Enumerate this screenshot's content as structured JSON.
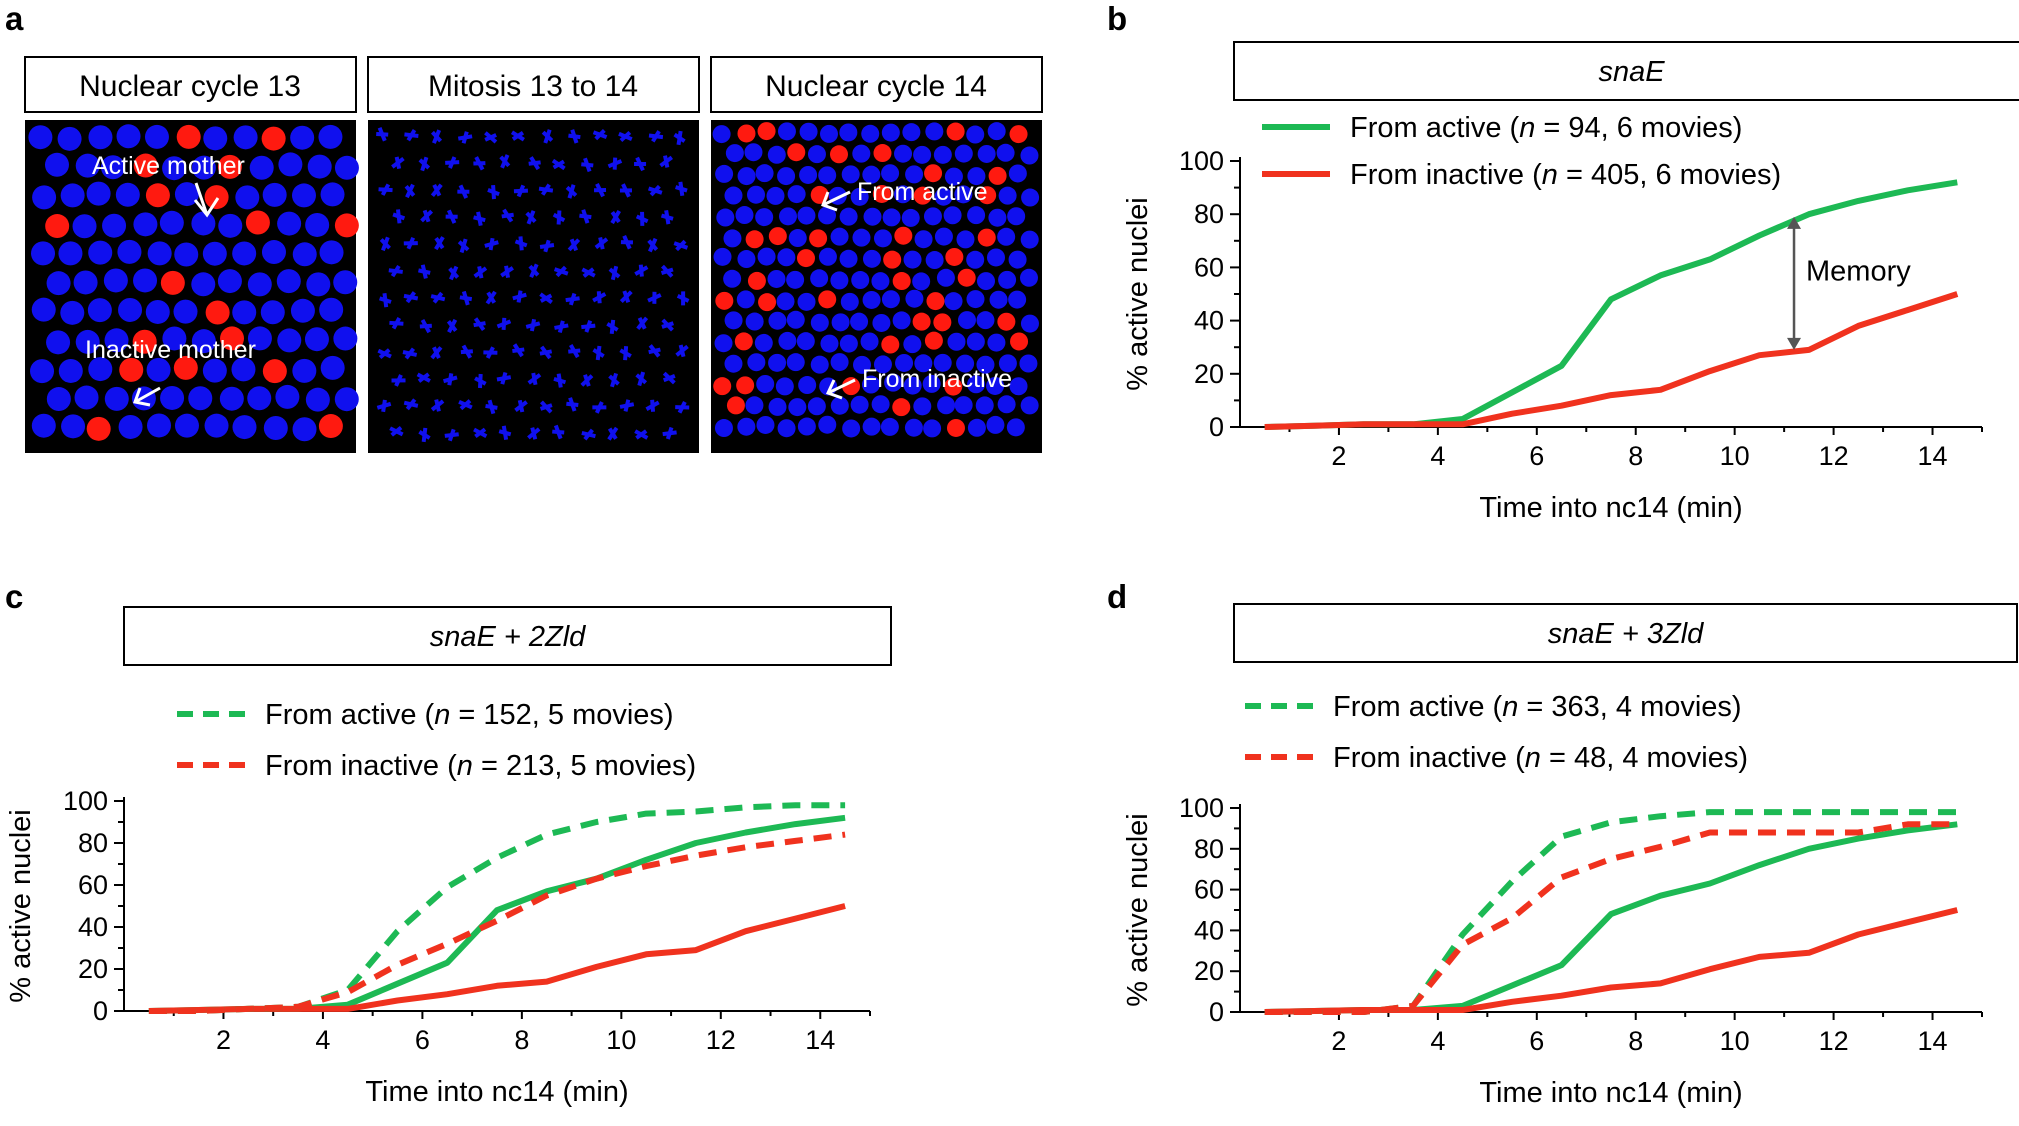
{
  "panel_letters": {
    "a": "a",
    "b": "b",
    "c": "c",
    "d": "d"
  },
  "panel_a": {
    "headers": [
      "Nuclear cycle 13",
      "Mitosis 13 to 14",
      "Nuclear cycle 14"
    ],
    "labels": {
      "active_mother": "Active mother",
      "inactive_mother": "Inactive mother",
      "from_active": "From active",
      "from_inactive": "From inactive"
    },
    "colors": {
      "background": "#000000",
      "nucleus": "#1010ee",
      "active": "#ff1a10",
      "arrow": "#ffffff"
    }
  },
  "colors": {
    "green": "#1db954",
    "red": "#f0321e",
    "memory_arrow": "#555555",
    "frame": "#000000"
  },
  "chart_data": [
    {
      "panel": "b",
      "type": "line",
      "title": "snaE",
      "xlabel": "Time into nc14 (min)",
      "ylabel": "% active nuclei",
      "xlim": [
        0,
        15
      ],
      "ylim": [
        0,
        100
      ],
      "xticks": [
        2,
        4,
        6,
        8,
        10,
        12,
        14
      ],
      "yticks": [
        0,
        20,
        40,
        60,
        80,
        100
      ],
      "x": [
        0.5,
        1.5,
        2.5,
        3.5,
        4.5,
        5.5,
        6.5,
        7.5,
        8.5,
        9.5,
        10.5,
        11.5,
        12.5,
        13.5,
        14.5
      ],
      "series": [
        {
          "name": "From active",
          "label": "From active",
          "n": "94",
          "rest": ", 6 movies)",
          "color": "green",
          "dashed": false,
          "values": [
            0,
            0.5,
            1,
            1,
            3,
            13,
            23,
            48,
            57,
            63,
            72,
            80,
            85,
            89,
            92
          ]
        },
        {
          "name": "From inactive",
          "label": "From inactive",
          "n": "405",
          "rest": ", 6 movies)",
          "color": "red",
          "dashed": false,
          "values": [
            0,
            0.5,
            1,
            1,
            1,
            5,
            8,
            12,
            14,
            21,
            27,
            29,
            38,
            44,
            50
          ]
        }
      ],
      "annotation": {
        "text": "Memory",
        "x": 11.2,
        "y_top": 79,
        "y_bottom": 29
      }
    },
    {
      "panel": "c",
      "type": "line",
      "title": "snaE + 2Zld",
      "xlabel": "Time into nc14 (min)",
      "ylabel": "% active nuclei",
      "xlim": [
        0,
        15
      ],
      "ylim": [
        0,
        100
      ],
      "xticks": [
        2,
        4,
        6,
        8,
        10,
        12,
        14
      ],
      "yticks": [
        0,
        20,
        40,
        60,
        80,
        100
      ],
      "x": [
        0.5,
        1.5,
        2.5,
        3.5,
        4.5,
        5.5,
        6.5,
        7.5,
        8.5,
        9.5,
        10.5,
        11.5,
        12.5,
        13.5,
        14.5
      ],
      "series": [
        {
          "name": "From active",
          "label": "From active",
          "n": "152",
          "rest": ", 5 movies)",
          "color": "green",
          "dashed": true,
          "values": [
            0,
            0,
            1,
            2,
            10,
            38,
            59,
            73,
            84,
            90,
            94,
            95,
            97,
            98,
            98
          ]
        },
        {
          "name": "From inactive",
          "label": "From inactive",
          "n": "213",
          "rest": ", 5 movies)",
          "color": "red",
          "dashed": true,
          "values": [
            0,
            0,
            1,
            2,
            9,
            22,
            32,
            43,
            55,
            63,
            69,
            74,
            78,
            81,
            84
          ]
        },
        {
          "name": "snaE from active",
          "color": "green",
          "dashed": false,
          "legend": false,
          "values": [
            0,
            0.5,
            1,
            1,
            3,
            13,
            23,
            48,
            57,
            63,
            72,
            80,
            85,
            89,
            92
          ]
        },
        {
          "name": "snaE from inactive",
          "color": "red",
          "dashed": false,
          "legend": false,
          "values": [
            0,
            0.5,
            1,
            1,
            1,
            5,
            8,
            12,
            14,
            21,
            27,
            29,
            38,
            44,
            50
          ]
        }
      ]
    },
    {
      "panel": "d",
      "type": "line",
      "title": "snaE + 3Zld",
      "xlabel": "Time into nc14 (min)",
      "ylabel": "% active nuclei",
      "xlim": [
        0,
        15
      ],
      "ylim": [
        0,
        100
      ],
      "xticks": [
        2,
        4,
        6,
        8,
        10,
        12,
        14
      ],
      "yticks": [
        0,
        20,
        40,
        60,
        80,
        100
      ],
      "x": [
        0.5,
        1.5,
        2.5,
        3.5,
        4.5,
        5.5,
        6.5,
        7.5,
        8.5,
        9.5,
        10.5,
        11.5,
        12.5,
        13.5,
        14.5
      ],
      "series": [
        {
          "name": "From active",
          "label": "From active",
          "n": "363",
          "rest": ", 4 movies)",
          "color": "green",
          "dashed": true,
          "values": [
            0,
            0,
            0,
            3,
            38,
            64,
            86,
            93,
            96,
            98,
            98,
            98,
            98,
            98,
            98
          ]
        },
        {
          "name": "From inactive",
          "label": "From inactive",
          "n": "48",
          "rest": ", 4 movies)",
          "color": "red",
          "dashed": true,
          "values": [
            0,
            0,
            0,
            3,
            33,
            46,
            66,
            75,
            81,
            88,
            88,
            88,
            88,
            92,
            92
          ]
        },
        {
          "name": "snaE from active",
          "color": "green",
          "dashed": false,
          "legend": false,
          "values": [
            0,
            0.5,
            1,
            1,
            3,
            13,
            23,
            48,
            57,
            63,
            72,
            80,
            85,
            89,
            92
          ]
        },
        {
          "name": "snaE from inactive",
          "color": "red",
          "dashed": false,
          "legend": false,
          "values": [
            0,
            0.5,
            1,
            1,
            1,
            5,
            8,
            12,
            14,
            21,
            27,
            29,
            38,
            44,
            50
          ]
        }
      ]
    }
  ]
}
